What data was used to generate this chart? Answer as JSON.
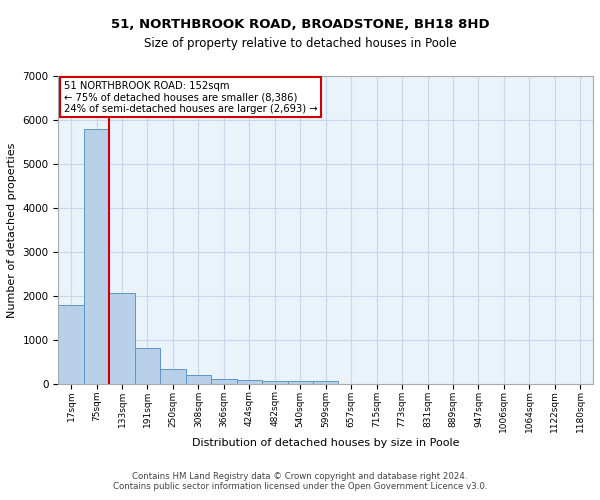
{
  "title1": "51, NORTHBROOK ROAD, BROADSTONE, BH18 8HD",
  "title2": "Size of property relative to detached houses in Poole",
  "xlabel": "Distribution of detached houses by size in Poole",
  "ylabel": "Number of detached properties",
  "bin_labels": [
    "17sqm",
    "75sqm",
    "133sqm",
    "191sqm",
    "250sqm",
    "308sqm",
    "366sqm",
    "424sqm",
    "482sqm",
    "540sqm",
    "599sqm",
    "657sqm",
    "715sqm",
    "773sqm",
    "831sqm",
    "889sqm",
    "947sqm",
    "1006sqm",
    "1064sqm",
    "1122sqm",
    "1180sqm"
  ],
  "bar_values": [
    1800,
    5800,
    2060,
    820,
    340,
    210,
    120,
    100,
    80,
    70,
    60,
    0,
    0,
    0,
    0,
    0,
    0,
    0,
    0,
    0,
    0
  ],
  "bar_color": "#b8d0e8",
  "bar_edge_color": "#5b96c8",
  "annotation_line0": "51 NORTHBROOK ROAD: 152sqm",
  "annotation_line1": "← 75% of detached houses are smaller (8,386)",
  "annotation_line2": "24% of semi-detached houses are larger (2,693) →",
  "red_line_color": "#cc0000",
  "annotation_box_facecolor": "#ffffff",
  "annotation_box_edgecolor": "#cc0000",
  "grid_color": "#c8d8ec",
  "background_color": "#eaf2fa",
  "ylim": [
    0,
    7000
  ],
  "red_line_x": 1.5,
  "footer_line1": "Contains HM Land Registry data © Crown copyright and database right 2024.",
  "footer_line2": "Contains public sector information licensed under the Open Government Licence v3.0."
}
